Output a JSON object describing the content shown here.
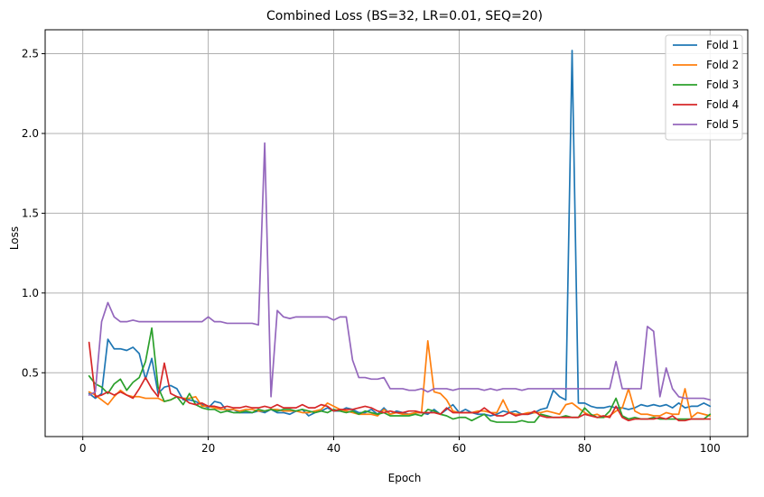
{
  "chart_data": {
    "type": "line",
    "title": "Combined Loss (BS=32, LR=0.01, SEQ=20)",
    "xlabel": "Epoch",
    "ylabel": "Loss",
    "xlim": [
      -6.0,
      106.0
    ],
    "ylim": [
      0.1,
      2.65
    ],
    "xticks": [
      0,
      20,
      40,
      60,
      80,
      100
    ],
    "xtick_labels": [
      "0",
      "20",
      "40",
      "60",
      "80",
      "100"
    ],
    "yticks": [
      0.5,
      1.0,
      1.5,
      2.0,
      2.5
    ],
    "ytick_labels": [
      "0.5",
      "1.0",
      "1.5",
      "2.0",
      "2.5"
    ],
    "grid": true,
    "legend_position": "top-right",
    "x": [
      1,
      2,
      3,
      4,
      5,
      6,
      7,
      8,
      9,
      10,
      11,
      12,
      13,
      14,
      15,
      16,
      17,
      18,
      19,
      20,
      21,
      22,
      23,
      24,
      25,
      26,
      27,
      28,
      29,
      30,
      31,
      32,
      33,
      34,
      35,
      36,
      37,
      38,
      39,
      40,
      41,
      42,
      43,
      44,
      45,
      46,
      47,
      48,
      49,
      50,
      51,
      52,
      53,
      54,
      55,
      56,
      57,
      58,
      59,
      60,
      61,
      62,
      63,
      64,
      65,
      66,
      67,
      68,
      69,
      70,
      71,
      72,
      73,
      74,
      75,
      76,
      77,
      78,
      79,
      80,
      81,
      82,
      83,
      84,
      85,
      86,
      87,
      88,
      89,
      90,
      91,
      92,
      93,
      94,
      95,
      96,
      97,
      98,
      99,
      100
    ],
    "series": [
      {
        "name": "Fold 1",
        "color": "#1f77b4",
        "values": [
          0.37,
          0.34,
          0.37,
          0.71,
          0.65,
          0.65,
          0.64,
          0.66,
          0.62,
          0.46,
          0.59,
          0.37,
          0.41,
          0.42,
          0.4,
          0.33,
          0.33,
          0.32,
          0.3,
          0.28,
          0.32,
          0.31,
          0.26,
          0.27,
          0.25,
          0.25,
          0.25,
          0.26,
          0.25,
          0.27,
          0.25,
          0.25,
          0.24,
          0.26,
          0.27,
          0.23,
          0.25,
          0.26,
          0.28,
          0.26,
          0.26,
          0.28,
          0.27,
          0.25,
          0.25,
          0.27,
          0.24,
          0.28,
          0.24,
          0.26,
          0.25,
          0.24,
          0.25,
          0.25,
          0.24,
          0.27,
          0.24,
          0.27,
          0.3,
          0.25,
          0.27,
          0.25,
          0.24,
          0.24,
          0.23,
          0.24,
          0.26,
          0.25,
          0.26,
          0.24,
          0.24,
          0.25,
          0.27,
          0.28,
          0.39,
          0.35,
          0.33,
          2.52,
          0.31,
          0.31,
          0.29,
          0.28,
          0.28,
          0.29,
          0.28,
          0.28,
          0.27,
          0.28,
          0.3,
          0.29,
          0.3,
          0.29,
          0.3,
          0.28,
          0.31,
          0.28,
          0.29,
          0.29,
          0.31,
          0.29
        ]
      },
      {
        "name": "Fold 2",
        "color": "#ff7f0e",
        "values": [
          0.38,
          0.36,
          0.33,
          0.3,
          0.35,
          0.39,
          0.36,
          0.35,
          0.35,
          0.34,
          0.34,
          0.34,
          0.32,
          0.33,
          0.35,
          0.34,
          0.34,
          0.35,
          0.29,
          0.29,
          0.28,
          0.27,
          0.27,
          0.27,
          0.26,
          0.27,
          0.27,
          0.26,
          0.26,
          0.27,
          0.27,
          0.26,
          0.26,
          0.26,
          0.25,
          0.25,
          0.26,
          0.27,
          0.31,
          0.29,
          0.27,
          0.26,
          0.25,
          0.24,
          0.24,
          0.24,
          0.23,
          0.27,
          0.24,
          0.25,
          0.24,
          0.24,
          0.25,
          0.25,
          0.7,
          0.38,
          0.37,
          0.33,
          0.26,
          0.25,
          0.25,
          0.25,
          0.26,
          0.26,
          0.25,
          0.25,
          0.33,
          0.25,
          0.24,
          0.24,
          0.25,
          0.25,
          0.25,
          0.26,
          0.25,
          0.24,
          0.3,
          0.31,
          0.28,
          0.25,
          0.23,
          0.24,
          0.22,
          0.23,
          0.26,
          0.28,
          0.4,
          0.26,
          0.24,
          0.24,
          0.23,
          0.23,
          0.25,
          0.24,
          0.24,
          0.4,
          0.22,
          0.25,
          0.24,
          0.23
        ]
      },
      {
        "name": "Fold 3",
        "color": "#2ca02c",
        "values": [
          0.48,
          0.43,
          0.41,
          0.37,
          0.43,
          0.46,
          0.39,
          0.44,
          0.47,
          0.57,
          0.78,
          0.41,
          0.32,
          0.33,
          0.35,
          0.3,
          0.37,
          0.3,
          0.28,
          0.27,
          0.27,
          0.25,
          0.26,
          0.25,
          0.25,
          0.26,
          0.25,
          0.27,
          0.26,
          0.27,
          0.26,
          0.27,
          0.27,
          0.26,
          0.27,
          0.26,
          0.25,
          0.26,
          0.25,
          0.27,
          0.26,
          0.25,
          0.26,
          0.24,
          0.26,
          0.25,
          0.24,
          0.25,
          0.23,
          0.23,
          0.23,
          0.23,
          0.24,
          0.23,
          0.27,
          0.26,
          0.24,
          0.23,
          0.21,
          0.22,
          0.22,
          0.2,
          0.22,
          0.24,
          0.2,
          0.19,
          0.19,
          0.19,
          0.19,
          0.2,
          0.19,
          0.19,
          0.24,
          0.23,
          0.22,
          0.22,
          0.23,
          0.22,
          0.22,
          0.28,
          0.24,
          0.22,
          0.22,
          0.26,
          0.34,
          0.23,
          0.21,
          0.22,
          0.21,
          0.21,
          0.22,
          0.21,
          0.21,
          0.21,
          0.21,
          0.21,
          0.21,
          0.21,
          0.21,
          0.24
        ]
      },
      {
        "name": "Fold 4",
        "color": "#d62728",
        "values": [
          0.69,
          0.35,
          0.36,
          0.38,
          0.36,
          0.38,
          0.36,
          0.34,
          0.4,
          0.47,
          0.4,
          0.35,
          0.56,
          0.37,
          0.35,
          0.34,
          0.31,
          0.3,
          0.31,
          0.29,
          0.29,
          0.28,
          0.29,
          0.28,
          0.28,
          0.29,
          0.28,
          0.28,
          0.29,
          0.28,
          0.3,
          0.28,
          0.28,
          0.28,
          0.3,
          0.28,
          0.28,
          0.3,
          0.29,
          0.26,
          0.27,
          0.27,
          0.27,
          0.28,
          0.29,
          0.28,
          0.26,
          0.25,
          0.26,
          0.25,
          0.25,
          0.26,
          0.26,
          0.25,
          0.25,
          0.25,
          0.24,
          0.28,
          0.25,
          0.25,
          0.25,
          0.25,
          0.25,
          0.28,
          0.25,
          0.23,
          0.23,
          0.25,
          0.23,
          0.24,
          0.24,
          0.26,
          0.23,
          0.22,
          0.22,
          0.22,
          0.22,
          0.22,
          0.22,
          0.24,
          0.23,
          0.22,
          0.23,
          0.22,
          0.29,
          0.22,
          0.2,
          0.21,
          0.21,
          0.21,
          0.21,
          0.22,
          0.21,
          0.23,
          0.2,
          0.2,
          0.21,
          0.21,
          0.21,
          0.21
        ]
      },
      {
        "name": "Fold 5",
        "color": "#9467bd",
        "values": [
          0.36,
          0.38,
          0.82,
          0.94,
          0.85,
          0.82,
          0.82,
          0.83,
          0.82,
          0.82,
          0.82,
          0.82,
          0.82,
          0.82,
          0.82,
          0.82,
          0.82,
          0.82,
          0.82,
          0.85,
          0.82,
          0.82,
          0.81,
          0.81,
          0.81,
          0.81,
          0.81,
          0.8,
          1.94,
          0.35,
          0.89,
          0.85,
          0.84,
          0.85,
          0.85,
          0.85,
          0.85,
          0.85,
          0.85,
          0.83,
          0.85,
          0.85,
          0.58,
          0.47,
          0.47,
          0.46,
          0.46,
          0.47,
          0.4,
          0.4,
          0.4,
          0.39,
          0.39,
          0.4,
          0.38,
          0.4,
          0.4,
          0.4,
          0.39,
          0.4,
          0.4,
          0.4,
          0.4,
          0.39,
          0.4,
          0.39,
          0.4,
          0.4,
          0.4,
          0.39,
          0.4,
          0.4,
          0.4,
          0.4,
          0.4,
          0.4,
          0.4,
          0.4,
          0.4,
          0.4,
          0.4,
          0.4,
          0.4,
          0.4,
          0.57,
          0.4,
          0.4,
          0.4,
          0.4,
          0.79,
          0.76,
          0.35,
          0.53,
          0.4,
          0.35,
          0.34,
          0.34,
          0.34,
          0.34,
          0.33
        ]
      }
    ]
  }
}
